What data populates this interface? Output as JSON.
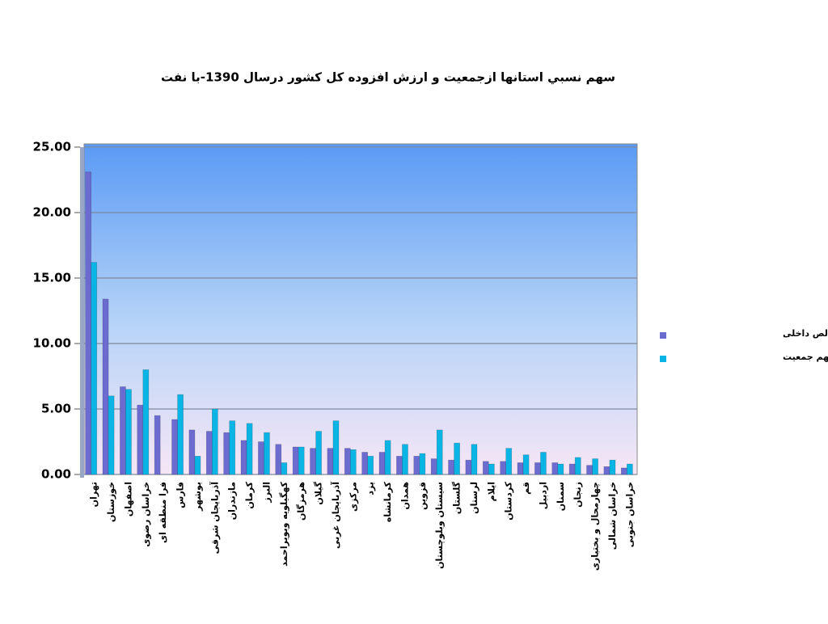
{
  "chart_data": {
    "type": "bar",
    "title": "سهم نسبي استانها ازجمعيت و ارزش افزوده كل كشور درسال 1390-با نفت",
    "categories": [
      "تهران",
      "خوزستان",
      "اصفهان",
      "خراسان رضوی",
      "فرا منطقه ای",
      "فارس",
      "بوشهر",
      "آذربایجان شرقی",
      "مازندران",
      "کرمان",
      "البرز",
      "کهگیلویه وبویراحمد",
      "هرمزگان",
      "گیلان",
      "آذربایجان غربی",
      "مرکزی",
      "یزد",
      "کرمانشاه",
      "همدان",
      "قزوین",
      "سیستان وبلوچستان",
      "گلستان",
      "لرستان",
      "ایلام",
      "کردستان",
      "قم",
      "اردبیل",
      "سمنان",
      "زنجان",
      "چهارمحال و بختیاری",
      "خراسان شمالی",
      "خراسان جنوبی"
    ],
    "series": [
      {
        "name": "سهم محصول ناخالص داخلی",
        "color": "#6b6bd0",
        "values": [
          23.1,
          13.4,
          6.7,
          5.3,
          4.5,
          4.2,
          3.4,
          3.3,
          3.2,
          2.6,
          2.5,
          2.3,
          2.1,
          2.0,
          2.0,
          2.0,
          1.7,
          1.7,
          1.4,
          1.4,
          1.2,
          1.1,
          1.1,
          1.0,
          1.0,
          0.9,
          0.9,
          0.9,
          0.8,
          0.7,
          0.6,
          0.5
        ]
      },
      {
        "name": "سهم جمعیت",
        "color": "#0ab4e4",
        "values": [
          16.2,
          6.0,
          6.5,
          8.0,
          0,
          6.1,
          1.4,
          5.0,
          4.1,
          3.9,
          3.2,
          0.9,
          2.1,
          3.3,
          4.1,
          1.9,
          1.4,
          2.6,
          2.3,
          1.6,
          3.4,
          2.4,
          2.3,
          0.8,
          2.0,
          1.5,
          1.7,
          0.8,
          1.3,
          1.2,
          1.1,
          0.8
        ]
      }
    ],
    "ylim": [
      0,
      25
    ],
    "yticks": [
      {
        "value": 0,
        "label": "0.00"
      },
      {
        "value": 5,
        "label": "5.00"
      },
      {
        "value": 10,
        "label": "10.00"
      },
      {
        "value": 15,
        "label": "15.00"
      },
      {
        "value": 20,
        "label": "20.00"
      },
      {
        "value": 25,
        "label": "25.00"
      }
    ],
    "grid": true,
    "legend": "right"
  }
}
